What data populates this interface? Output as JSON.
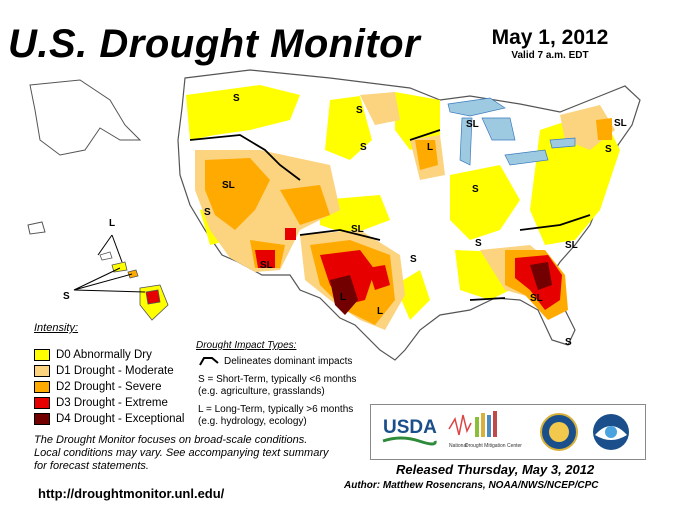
{
  "header": {
    "title": "U.S. Drought Monitor",
    "date": "May 1, 2012",
    "valid": "Valid 7 a.m. EDT"
  },
  "legend": {
    "title": "Intensity:",
    "items": [
      {
        "label": "D0 Abnormally Dry",
        "color": "#FFFF00"
      },
      {
        "label": "D1 Drought - Moderate",
        "color": "#FCD37F"
      },
      {
        "label": "D2 Drought - Severe",
        "color": "#FFAA00"
      },
      {
        "label": "D3 Drought - Extreme",
        "color": "#E60000"
      },
      {
        "label": "D4 Drought - Exceptional",
        "color": "#730000"
      }
    ]
  },
  "impacts": {
    "title": "Drought Impact Types:",
    "line1": "Delineates dominant impacts",
    "short1": "S = Short-Term, typically <6 months",
    "short2": "(e.g. agriculture, grasslands)",
    "long1": "L = Long-Term, typically >6 months",
    "long2": "(e.g. hydrology, ecology)"
  },
  "map_labels": {
    "s": "S",
    "l": "L",
    "sl": "SL"
  },
  "logos": {
    "usda": "USDA",
    "ndmc_line1": "National",
    "ndmc_line2": "Drought Mitigation Center"
  },
  "footnote": {
    "line1": "The Drought Monitor focuses on broad-scale conditions.",
    "line2": "Local conditions may vary. See accompanying text summary",
    "line3": "for forecast statements."
  },
  "url": "http://droughtmonitor.unl.edu/",
  "released": "Released Thursday, May 3, 2012",
  "author": "Author: Matthew Rosencrans, NOAA/NWS/NCEP/CPC"
}
